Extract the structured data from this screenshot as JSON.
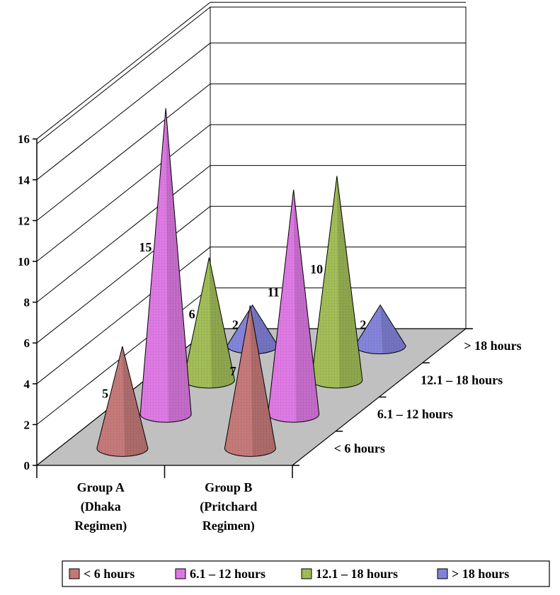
{
  "chart_data": {
    "type": "bar",
    "shape": "cone",
    "projection": "3d",
    "categories": [
      [
        "Group A",
        "(Dhaka",
        "Regimen)"
      ],
      [
        "Group B",
        "(Pritchard",
        "Regimen)"
      ]
    ],
    "series": [
      {
        "name": "< 6 hours",
        "values": [
          5,
          7
        ],
        "color": "#c77b7b"
      },
      {
        "name": "6.1 – 12 hours",
        "values": [
          15,
          11
        ],
        "color": "#e07be6"
      },
      {
        "name": "12.1 – 18 hours",
        "values": [
          6,
          10
        ],
        "color": "#a3bf59"
      },
      {
        "name": "> 18 hours",
        "values": [
          2,
          2
        ],
        "color": "#8585dd"
      }
    ],
    "yticks": [
      0,
      2,
      4,
      6,
      8,
      10,
      12,
      14,
      16
    ],
    "ylim": [
      0,
      16
    ],
    "grid": true,
    "legend": "bottom",
    "floor_color": "#c0c0c0",
    "title": "",
    "xlabel": "",
    "ylabel": ""
  }
}
